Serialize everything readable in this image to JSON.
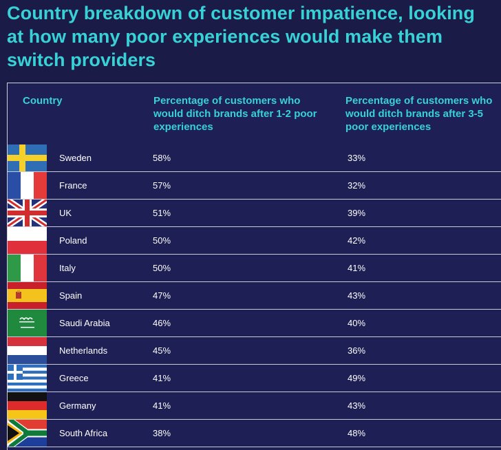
{
  "title": "Country breakdown of customer impatience, looking at how many poor experiences would make them switch providers",
  "colors": {
    "background": "#1b1b47",
    "panel": "#1e1f55",
    "accent": "#38d2d6",
    "divider": "#c9cbd9"
  },
  "chart_data": {
    "type": "table",
    "title": "Country breakdown of customer impatience, looking at how many poor experiences would make them switch providers",
    "columns": [
      "Country",
      "Percentage of customers who would ditch brands after 1-2 poor experiences",
      "Percentage of customers who would ditch brands after 3-5 poor experiences"
    ],
    "rows": [
      {
        "country": "Sweden",
        "flag": "sweden-flag-icon",
        "after_1_2": "58%",
        "after_3_5": "33%"
      },
      {
        "country": "France",
        "flag": "france-flag-icon",
        "after_1_2": "57%",
        "after_3_5": "32%"
      },
      {
        "country": "UK",
        "flag": "uk-flag-icon",
        "after_1_2": "51%",
        "after_3_5": "39%"
      },
      {
        "country": "Poland",
        "flag": "poland-flag-icon",
        "after_1_2": "50%",
        "after_3_5": "42%"
      },
      {
        "country": "Italy",
        "flag": "italy-flag-icon",
        "after_1_2": "50%",
        "after_3_5": "41%"
      },
      {
        "country": "Spain",
        "flag": "spain-flag-icon",
        "after_1_2": "47%",
        "after_3_5": "43%"
      },
      {
        "country": "Saudi Arabia",
        "flag": "saudi-arabia-flag-icon",
        "after_1_2": "46%",
        "after_3_5": "40%"
      },
      {
        "country": "Netherlands",
        "flag": "netherlands-flag-icon",
        "after_1_2": "45%",
        "after_3_5": "36%"
      },
      {
        "country": "Greece",
        "flag": "greece-flag-icon",
        "after_1_2": "41%",
        "after_3_5": "49%"
      },
      {
        "country": "Germany",
        "flag": "germany-flag-icon",
        "after_1_2": "41%",
        "after_3_5": "43%"
      },
      {
        "country": "South Africa",
        "flag": "south-africa-flag-icon",
        "after_1_2": "38%",
        "after_3_5": "48%"
      }
    ]
  }
}
